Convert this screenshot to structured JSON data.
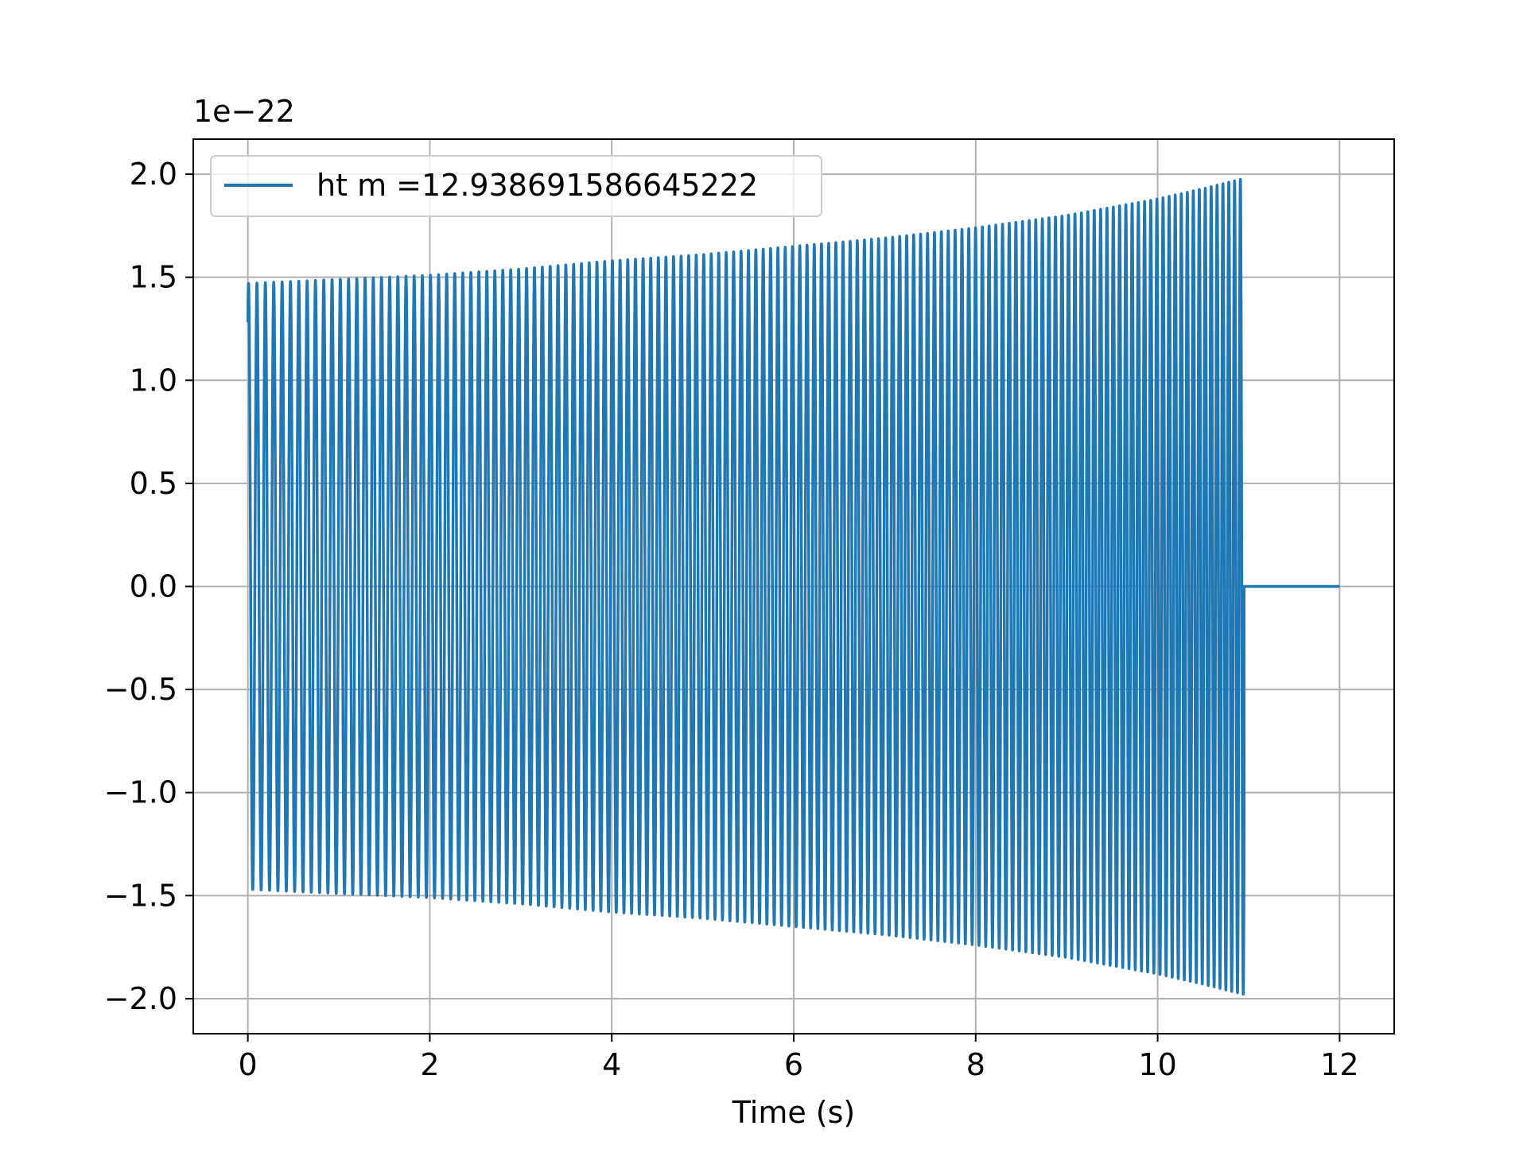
{
  "chart_data": {
    "type": "line",
    "title": "",
    "xlabel": "Time (s)",
    "ylabel": "",
    "y_offset_text": "1e−22",
    "xlim": [
      -0.6,
      12.6
    ],
    "ylim": [
      -2.17,
      2.17
    ],
    "x_ticks": [
      0,
      2,
      4,
      6,
      8,
      10,
      12
    ],
    "x_tick_labels": [
      "0",
      "2",
      "4",
      "6",
      "8",
      "10",
      "12"
    ],
    "y_ticks": [
      2.0,
      1.5,
      1.0,
      0.5,
      0.0,
      -0.5,
      -1.0,
      -1.5,
      -2.0
    ],
    "y_tick_labels": [
      "2.0",
      "1.5",
      "1.0",
      "0.5",
      "0.0",
      "−0.5",
      "−1.0",
      "−1.5",
      "−2.0"
    ],
    "grid": true,
    "legend_position": "upper-left",
    "series": [
      {
        "name": "ht m =12.938691586645222",
        "color": "#1f77b4",
        "oscillating_envelope": {
          "t": [
            0,
            1,
            2,
            3,
            4,
            5,
            6,
            7,
            8,
            9,
            10,
            10.5,
            10.95
          ],
          "amplitude": [
            1.47,
            1.49,
            1.51,
            1.54,
            1.58,
            1.61,
            1.65,
            1.69,
            1.74,
            1.8,
            1.88,
            1.93,
            1.98
          ],
          "cycles_per_second": [
            10.8,
            11.0,
            11.2,
            11.5,
            11.8,
            12.1,
            12.5,
            12.9,
            13.4,
            14.0,
            14.8,
            15.3,
            15.8
          ]
        },
        "signal_end": 10.95,
        "flat_segment": {
          "x": [
            10.95,
            12.0
          ],
          "y": [
            0.0,
            0.0
          ]
        }
      }
    ]
  }
}
